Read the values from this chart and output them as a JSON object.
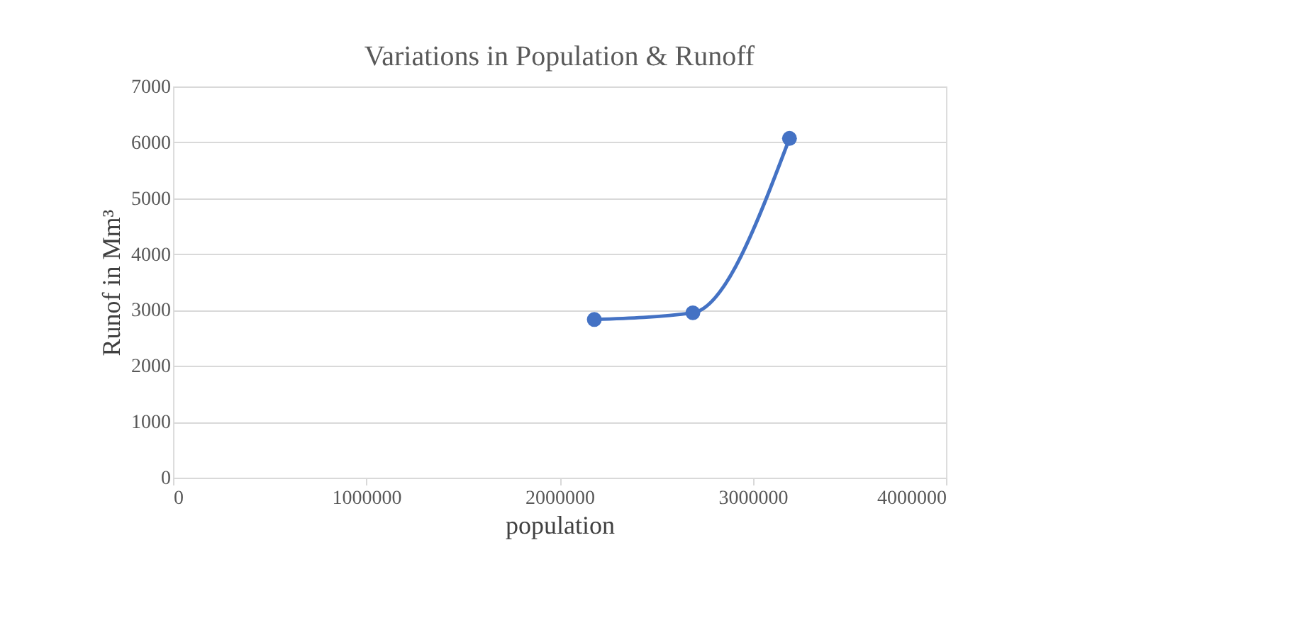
{
  "chart_data": {
    "type": "line",
    "title": "Variations in Population & Runoff",
    "xlabel": "population",
    "ylabel": "Runof in Mm³",
    "x": [
      2180000,
      2690000,
      3190000
    ],
    "series": [
      {
        "color": "#4472c4",
        "values": [
          2830,
          2950,
          6070
        ]
      }
    ],
    "xlim": [
      0,
      4000000
    ],
    "xticks": [
      0,
      1000000,
      2000000,
      3000000,
      4000000
    ],
    "ylim": [
      0,
      7000
    ],
    "yticks": [
      0,
      1000,
      2000,
      3000,
      4000,
      5000,
      6000,
      7000
    ],
    "grid": "y",
    "marker": "circle",
    "line_style": "solid"
  }
}
